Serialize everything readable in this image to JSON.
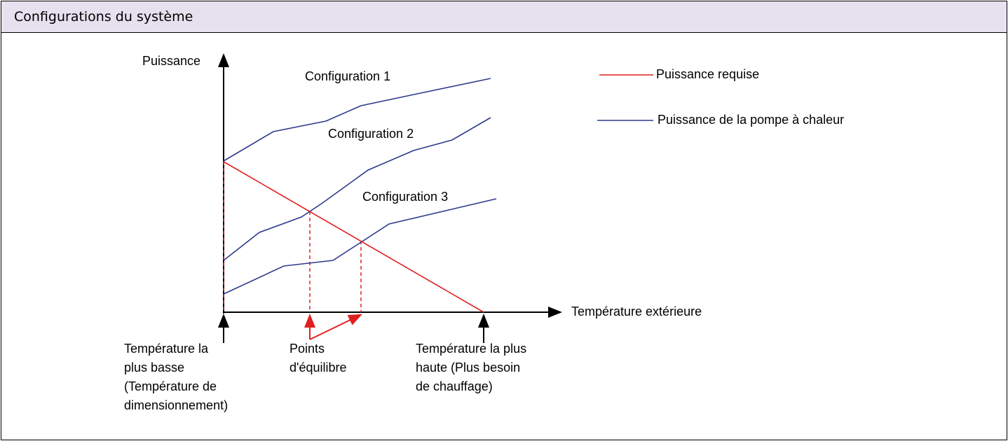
{
  "header": {
    "title": "Configurations du système"
  },
  "diagram": {
    "y_axis_label": "Puissance",
    "x_axis_label": "Température extérieure",
    "curves": [
      {
        "label": "Configuration 1"
      },
      {
        "label": "Configuration 2"
      },
      {
        "label": "Configuration 3"
      }
    ],
    "legend": [
      {
        "label": "Puissance requise"
      },
      {
        "label": "Puissance de la pompe à chaleur"
      }
    ],
    "annotations": [
      {
        "lines": [
          "Température la",
          "plus basse",
          "(Température de",
          "dimensionnement)"
        ]
      },
      {
        "lines": [
          "Points",
          "d'équilibre"
        ]
      },
      {
        "lines": [
          "Température la plus",
          "haute (Plus besoin",
          "de chauffage)"
        ]
      }
    ]
  }
}
